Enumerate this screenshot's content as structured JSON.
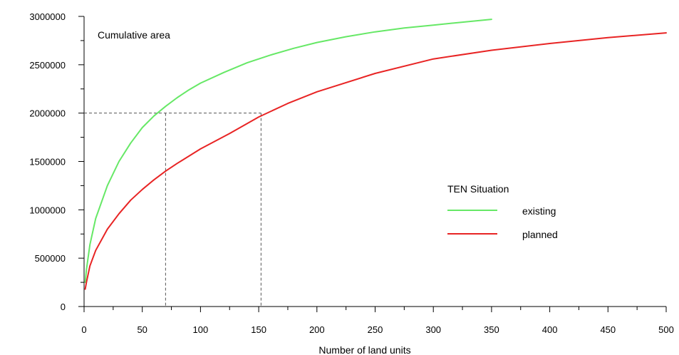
{
  "chart_data": {
    "type": "line",
    "title": "Cumulative area",
    "xlabel": "Number of land units",
    "ylabel": "",
    "xlim": [
      0,
      500
    ],
    "ylim": [
      0,
      3000000
    ],
    "x_ticks": [
      "0",
      "50",
      "100",
      "150",
      "200",
      "250",
      "300",
      "350",
      "400",
      "450",
      "500"
    ],
    "y_ticks": [
      "0",
      "500000",
      "1000000",
      "1500000",
      "2000000",
      "2500000",
      "3000000"
    ],
    "grid": false,
    "legend": {
      "title": "TEN Situation",
      "position": "center-right",
      "entries": [
        "existing",
        "planned"
      ]
    },
    "series": [
      {
        "name": "existing",
        "color": "#66e866",
        "x": [
          1,
          2,
          5,
          10,
          20,
          30,
          40,
          50,
          60,
          70,
          80,
          90,
          100,
          120,
          140,
          160,
          180,
          200,
          225,
          250,
          275,
          300,
          325,
          350
        ],
        "y": [
          250000,
          380000,
          640000,
          910000,
          1250000,
          1500000,
          1690000,
          1850000,
          1970000,
          2070000,
          2160000,
          2240000,
          2310000,
          2420000,
          2520000,
          2600000,
          2670000,
          2730000,
          2790000,
          2840000,
          2880000,
          2910000,
          2940000,
          2970000
        ]
      },
      {
        "name": "planned",
        "color": "#e82424",
        "x": [
          1,
          2,
          5,
          10,
          20,
          30,
          40,
          50,
          60,
          70,
          80,
          100,
          125,
          150,
          175,
          200,
          250,
          300,
          350,
          400,
          450,
          500
        ],
        "y": [
          180000,
          250000,
          420000,
          580000,
          800000,
          960000,
          1100000,
          1210000,
          1310000,
          1400000,
          1480000,
          1630000,
          1790000,
          1960000,
          2100000,
          2220000,
          2410000,
          2560000,
          2650000,
          2720000,
          2780000,
          2830000
        ]
      }
    ],
    "reference_lines": [
      {
        "y": 2000000,
        "x_existing": 70,
        "x_planned": 152
      }
    ]
  }
}
